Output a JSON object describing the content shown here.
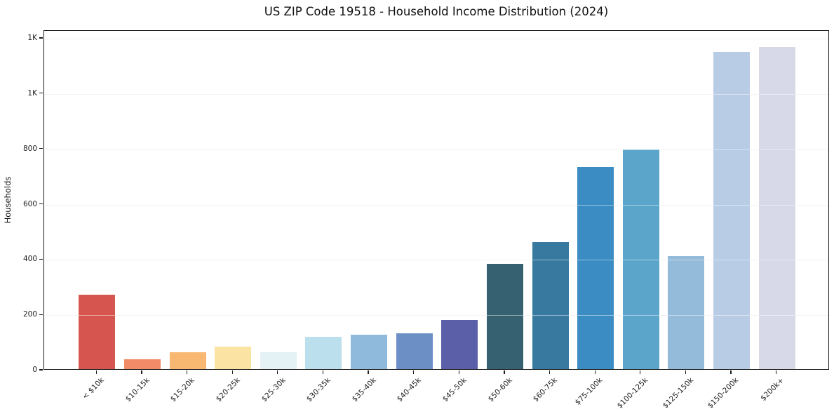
{
  "title": "US ZIP Code 19518 - Household Income Distribution (2024)",
  "chart_data": {
    "type": "bar",
    "title": "US ZIP Code 19518 - Household Income Distribution (2024)",
    "xlabel": "",
    "ylabel": "Households",
    "categories": [
      "< $10k",
      "$10-15k",
      "$15-20k",
      "$20-25k",
      "$25-30k",
      "$30-35k",
      "$35-40k",
      "$40-45k",
      "$45-50k",
      "$50-60k",
      "$60-75k",
      "$75-100k",
      "$100-125k",
      "$125-150k",
      "$150-200k",
      "$200k+"
    ],
    "values": [
      270,
      35,
      60,
      82,
      62,
      116,
      124,
      130,
      177,
      381,
      460,
      731,
      795,
      408,
      1146,
      1165
    ],
    "bar_colors": [
      "#d6564f",
      "#f28b68",
      "#f9b871",
      "#fbe3a4",
      "#e4f1f5",
      "#bbdfec",
      "#90badb",
      "#6c90c5",
      "#5a5fa8",
      "#366170",
      "#387a9f",
      "#3a8cc2",
      "#5ba5cb",
      "#94bbda",
      "#b9cce5",
      "#d8d9e8"
    ],
    "ylim": [
      0,
      1228
    ],
    "yticks": {
      "values": [
        0,
        200,
        400,
        600,
        800,
        1000,
        1200
      ],
      "labels": [
        "0",
        "200",
        "400",
        "600",
        "800",
        "1K",
        "1K"
      ]
    },
    "grid": "horizontal",
    "legend": "none",
    "colors": {
      "background": "#ffffff",
      "grid": "#e7e7e7",
      "axis": "#1a1a1a",
      "text": "#1c1c1c"
    }
  }
}
